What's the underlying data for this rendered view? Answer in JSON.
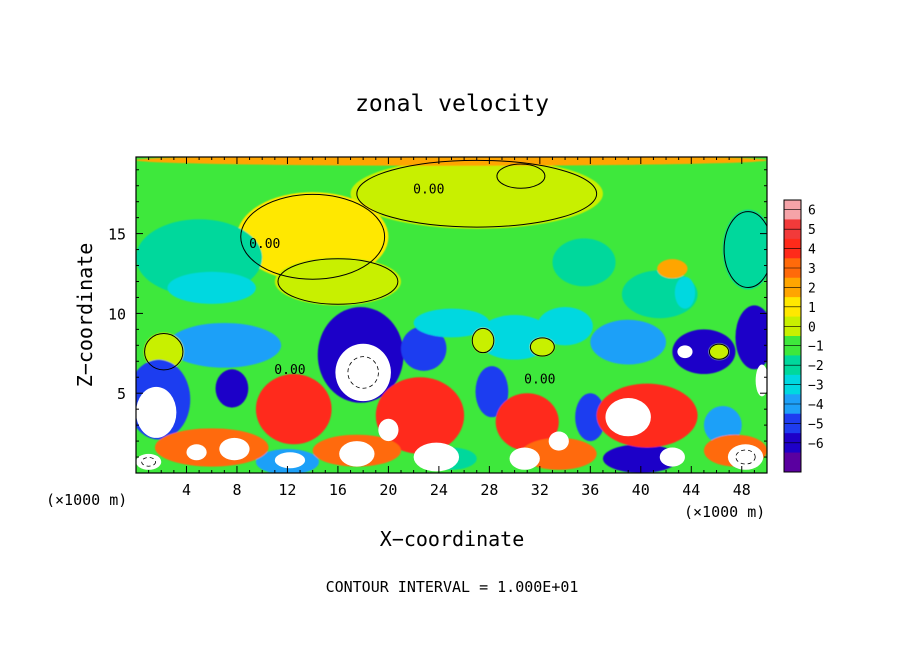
{
  "chart_data": {
    "type": "heatmap",
    "title": "zonal velocity",
    "xlabel": "X−coordinate",
    "ylabel": "Z−coordinate",
    "x_unit_left": "(×1000 m)",
    "x_unit_right": "(×1000 m)",
    "footer": "CONTOUR INTERVAL = 1.000E+01",
    "xlim": [
      0,
      50
    ],
    "ylim": [
      0,
      19.8
    ],
    "x_ticks": [
      4,
      8,
      12,
      16,
      20,
      24,
      28,
      32,
      36,
      40,
      44,
      48
    ],
    "y_ticks": [
      5,
      10,
      15
    ],
    "colorbar": {
      "min": -6,
      "max": 6,
      "tick_labels": [
        "6",
        "5",
        "4",
        "3",
        "2",
        "1",
        "0",
        "−1",
        "−2",
        "−3",
        "−4",
        "−5",
        "−6"
      ],
      "colors": [
        "#f5a3a8",
        "#f23a3a",
        "#ff2a1a",
        "#ff6a0a",
        "#ffa500",
        "#ffe800",
        "#c8f000",
        "#3ee83c",
        "#00d89c",
        "#00d8e0",
        "#1ea0f8",
        "#1e3cf0",
        "#1e00c8",
        "#5a00a0"
      ]
    },
    "contour_labels": [
      {
        "text": "0.00",
        "x": 23.2,
        "y": 17.5
      },
      {
        "text": "0.00",
        "x": 10.2,
        "y": 14.1
      },
      {
        "text": "0.00",
        "x": 12.2,
        "y": 6.2
      },
      {
        "text": "0.00",
        "x": 32.0,
        "y": 5.6
      }
    ],
    "features": [
      {
        "v": 0.7,
        "x": 27,
        "y": 17.5,
        "rx": 10,
        "ry": 2.2
      },
      {
        "v": 0.9,
        "x": 14,
        "y": 14.8,
        "rx": 6,
        "ry": 2.8
      },
      {
        "v": 0.5,
        "x": 16,
        "y": 12,
        "rx": 5,
        "ry": 1.5
      },
      {
        "v": -1.5,
        "x": 5,
        "y": 13.5,
        "rx": 5,
        "ry": 2.4
      },
      {
        "v": -1.8,
        "x": 6,
        "y": 11.6,
        "rx": 3.5,
        "ry": 1.0
      },
      {
        "v": -1.6,
        "x": 35.5,
        "y": 13.2,
        "rx": 2.5,
        "ry": 1.5
      },
      {
        "v": -1.4,
        "x": 41.5,
        "y": 11.2,
        "rx": 3,
        "ry": 1.5
      },
      {
        "v": -2.5,
        "x": 43.5,
        "y": 11.3,
        "rx": 0.8,
        "ry": 1.0
      },
      {
        "v": -1.0,
        "x": 48.5,
        "y": 14,
        "rx": 2,
        "ry": 2.5
      },
      {
        "v": 2.5,
        "x": 42.5,
        "y": 12.8,
        "rx": 1.2,
        "ry": 0.6
      },
      {
        "v": 0.8,
        "x": 30.5,
        "y": 18.6,
        "rx": 2,
        "ry": 0.8
      },
      {
        "v": -3,
        "x": 7,
        "y": 8,
        "rx": 4.5,
        "ry": 1.4
      },
      {
        "v": 0.5,
        "x": 2.2,
        "y": 7.6,
        "rx": 1.6,
        "ry": 1.2
      },
      {
        "v": -4.5,
        "x": 17.8,
        "y": 7.4,
        "rx": 3.4,
        "ry": 3.0
      },
      {
        "v": -3.5,
        "x": 22.8,
        "y": 7.8,
        "rx": 1.8,
        "ry": 1.4
      },
      {
        "v": -2.2,
        "x": 25,
        "y": 9.4,
        "rx": 3,
        "ry": 0.9
      },
      {
        "v": -2.5,
        "x": 30,
        "y": 8.5,
        "rx": 3,
        "ry": 1.4
      },
      {
        "v": -2.2,
        "x": 34,
        "y": 9.2,
        "rx": 2.2,
        "ry": 1.2
      },
      {
        "v": -3.2,
        "x": 39,
        "y": 8.2,
        "rx": 3,
        "ry": 1.4
      },
      {
        "v": -4.5,
        "x": 45,
        "y": 7.6,
        "rx": 2.5,
        "ry": 1.4
      },
      {
        "v": -5,
        "x": 49,
        "y": 8.5,
        "rx": 1.5,
        "ry": 2.0
      },
      {
        "v": 0.5,
        "x": 27.5,
        "y": 8.3,
        "rx": 0.9,
        "ry": 0.8
      },
      {
        "v": 0.5,
        "x": 32.2,
        "y": 7.9,
        "rx": 1.0,
        "ry": 0.6
      },
      {
        "v": 0.5,
        "x": 46.2,
        "y": 7.6,
        "rx": 0.8,
        "ry": 0.5
      },
      {
        "v": -4,
        "x": 1.8,
        "y": 4.6,
        "rx": 2.5,
        "ry": 2.5
      },
      {
        "v": -4.5,
        "x": 7.6,
        "y": 5.3,
        "rx": 1.3,
        "ry": 1.2
      },
      {
        "v": -3.5,
        "x": 28.2,
        "y": 5.1,
        "rx": 1.3,
        "ry": 1.6
      },
      {
        "v": -3.5,
        "x": 36,
        "y": 3.5,
        "rx": 1.2,
        "ry": 1.5
      },
      {
        "v": -3,
        "x": 46.5,
        "y": 3,
        "rx": 1.5,
        "ry": 1.2
      },
      {
        "v": -4.5,
        "x": 40,
        "y": 0.9,
        "rx": 3,
        "ry": 0.9
      },
      {
        "v": -3,
        "x": 12,
        "y": 0.7,
        "rx": 2.5,
        "ry": 0.8
      },
      {
        "v": 3.5,
        "x": 12.5,
        "y": 4,
        "rx": 3,
        "ry": 2.2
      },
      {
        "v": 3.5,
        "x": 22.5,
        "y": 3.6,
        "rx": 3.5,
        "ry": 2.4
      },
      {
        "v": 3.5,
        "x": 31,
        "y": 3.2,
        "rx": 2.5,
        "ry": 1.8
      },
      {
        "v": 3.5,
        "x": 40.5,
        "y": 3.6,
        "rx": 4,
        "ry": 2.0
      },
      {
        "v": 2.8,
        "x": 6,
        "y": 1.6,
        "rx": 4.5,
        "ry": 1.2
      },
      {
        "v": 3,
        "x": 17.5,
        "y": 1.4,
        "rx": 3.5,
        "ry": 1.0
      },
      {
        "v": 3,
        "x": 33.5,
        "y": 1.2,
        "rx": 3,
        "ry": 1.0
      },
      {
        "v": 3,
        "x": 47.5,
        "y": 1.4,
        "rx": 2.5,
        "ry": 1.0
      },
      {
        "v": -1.5,
        "x": 25,
        "y": 0.9,
        "rx": 2,
        "ry": 0.7
      },
      {
        "v": 2.2,
        "x": 25,
        "y": 19.6,
        "rx": 25,
        "ry": 0.35
      }
    ],
    "white_regions": [
      {
        "x": 18.0,
        "y": 6.3,
        "rx": 2.2,
        "ry": 1.8,
        "dashed": true
      },
      {
        "x": 1.6,
        "y": 3.8,
        "rx": 1.6,
        "ry": 1.6
      },
      {
        "x": 7.8,
        "y": 1.5,
        "rx": 1.2,
        "ry": 0.7
      },
      {
        "x": 4.8,
        "y": 1.3,
        "rx": 0.8,
        "ry": 0.5
      },
      {
        "x": 12.2,
        "y": 0.8,
        "rx": 1.2,
        "ry": 0.5
      },
      {
        "x": 17.5,
        "y": 1.2,
        "rx": 1.4,
        "ry": 0.8
      },
      {
        "x": 20.0,
        "y": 2.7,
        "rx": 0.8,
        "ry": 0.7
      },
      {
        "x": 23.8,
        "y": 1.0,
        "rx": 1.8,
        "ry": 0.9
      },
      {
        "x": 30.8,
        "y": 0.9,
        "rx": 1.2,
        "ry": 0.7
      },
      {
        "x": 33.5,
        "y": 2.0,
        "rx": 0.8,
        "ry": 0.6
      },
      {
        "x": 39.0,
        "y": 3.5,
        "rx": 1.8,
        "ry": 1.2
      },
      {
        "x": 42.5,
        "y": 1.0,
        "rx": 1.0,
        "ry": 0.6
      },
      {
        "x": 48.3,
        "y": 1.0,
        "rx": 1.4,
        "ry": 0.8,
        "dashed": true
      },
      {
        "x": 1.0,
        "y": 0.7,
        "rx": 1.0,
        "ry": 0.5,
        "dashed": true
      },
      {
        "x": 49.6,
        "y": 5.8,
        "rx": 0.5,
        "ry": 1.0
      },
      {
        "x": 43.5,
        "y": 7.6,
        "rx": 0.6,
        "ry": 0.4
      }
    ]
  }
}
